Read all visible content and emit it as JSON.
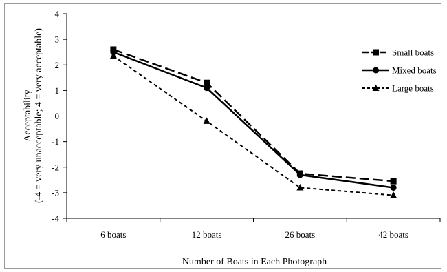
{
  "chart_data": {
    "type": "line",
    "title": "",
    "xlabel": "Number of Boats in Each Photograph",
    "ylabel_line1": "Acceptability",
    "ylabel_line2": "(-4 = very unacceptable; 4 = very acceptable)",
    "categories": [
      "6 boats",
      "12 boats",
      "26 boats",
      "42 boats"
    ],
    "ylim": [
      -4,
      4
    ],
    "yticks": [
      "4",
      "3",
      "2",
      "1",
      "0",
      "-1",
      "-2",
      "-3",
      "-4"
    ],
    "grid": false,
    "zero_line": true,
    "legend_position": "top-right",
    "series": [
      {
        "name": "Small boats",
        "values": [
          2.6,
          1.3,
          -2.25,
          -2.55
        ],
        "marker": "square",
        "dash": "long-dash",
        "color": "#000000"
      },
      {
        "name": "Mixed boats",
        "values": [
          2.5,
          1.1,
          -2.3,
          -2.8
        ],
        "marker": "circle",
        "dash": "solid",
        "color": "#000000"
      },
      {
        "name": "Large boats",
        "values": [
          2.35,
          -0.2,
          -2.8,
          -3.1
        ],
        "marker": "triangle",
        "dash": "short-dash",
        "color": "#000000"
      }
    ]
  }
}
